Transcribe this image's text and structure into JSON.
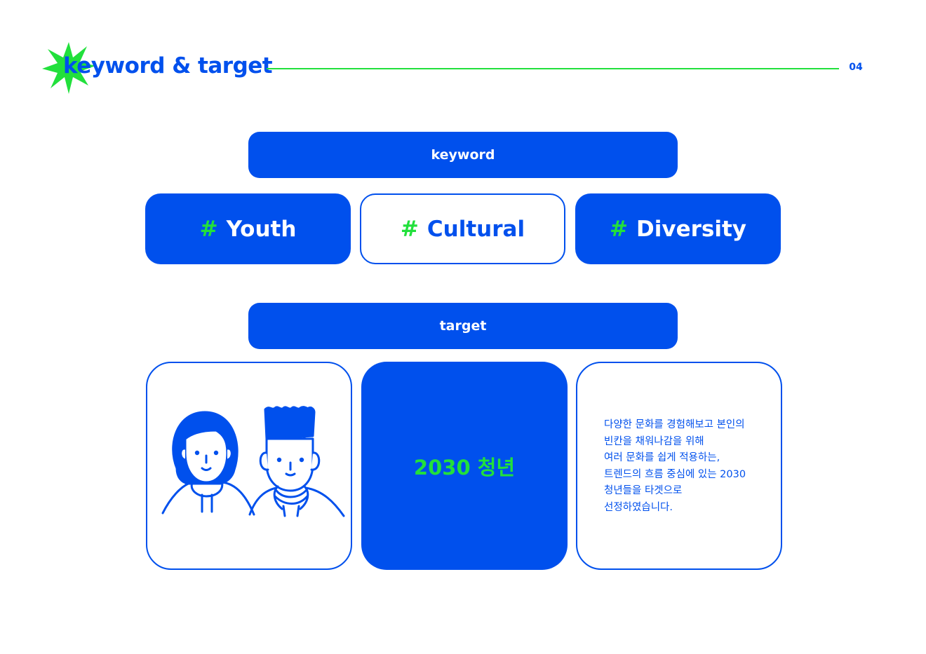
{
  "header": {
    "title": "keyword & target",
    "page_number": "04"
  },
  "keyword_section": {
    "label": "keyword",
    "keywords": [
      {
        "hash": "#",
        "text": "Youth"
      },
      {
        "hash": "#",
        "text": "Cultural"
      },
      {
        "hash": "#",
        "text": "Diversity"
      }
    ]
  },
  "target_section": {
    "label": "target",
    "target_label": "2030 청년",
    "description_lines": [
      "다양한 문화를 경험해보고 본인의",
      "빈칸을 채워나감을 위해",
      "여러 문화를 쉽게 적용하는,",
      "트렌드의 흐름 중심에 있는 2030",
      "청년들을 타겟으로",
      "선정하였습니다."
    ]
  },
  "colors": {
    "primary_blue": "#0050ed",
    "accent_green": "#22e03c",
    "background": "#ffffff"
  },
  "icons": {
    "title_decoration": "green-starburst",
    "illustration": "two-young-people-line-drawing"
  }
}
